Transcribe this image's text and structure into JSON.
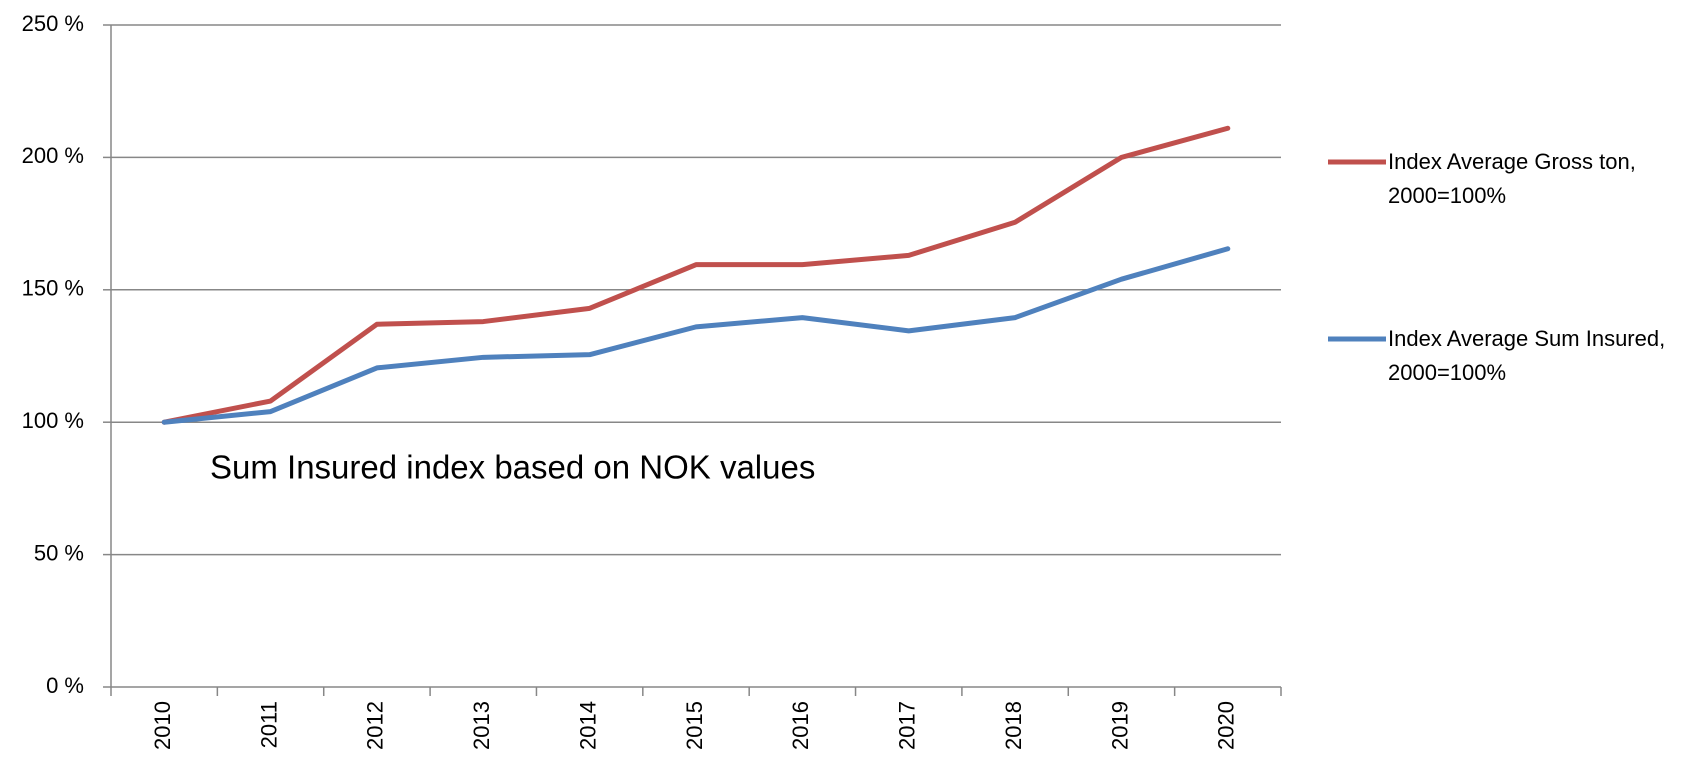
{
  "chart_data": {
    "type": "line",
    "annotation": "Sum Insured index based on NOK values",
    "categories": [
      "2010",
      "2011",
      "2012",
      "2013",
      "2014",
      "2015",
      "2016",
      "2017",
      "2018",
      "2019",
      "2020"
    ],
    "series": [
      {
        "name": "Index Average Gross ton, 2000=100%",
        "color": "#c0504d",
        "values": [
          100,
          108,
          137,
          138,
          143,
          159.5,
          159.5,
          163,
          175.5,
          200,
          211
        ]
      },
      {
        "name": "Index Average Sum Insured, 2000=100%",
        "color": "#4f81bd",
        "values": [
          100,
          104,
          120.5,
          124.5,
          125.5,
          136,
          139.5,
          134.5,
          139.5,
          154,
          165.5
        ]
      }
    ],
    "ylim": [
      0,
      250
    ],
    "yticks": [
      {
        "value": 0,
        "label": "0 %"
      },
      {
        "value": 50,
        "label": "50 %"
      },
      {
        "value": 100,
        "label": "100 %"
      },
      {
        "value": 150,
        "label": "150 %"
      },
      {
        "value": 200,
        "label": "200 %"
      },
      {
        "value": 250,
        "label": "250 %"
      }
    ],
    "grid": true,
    "legend": "right"
  }
}
